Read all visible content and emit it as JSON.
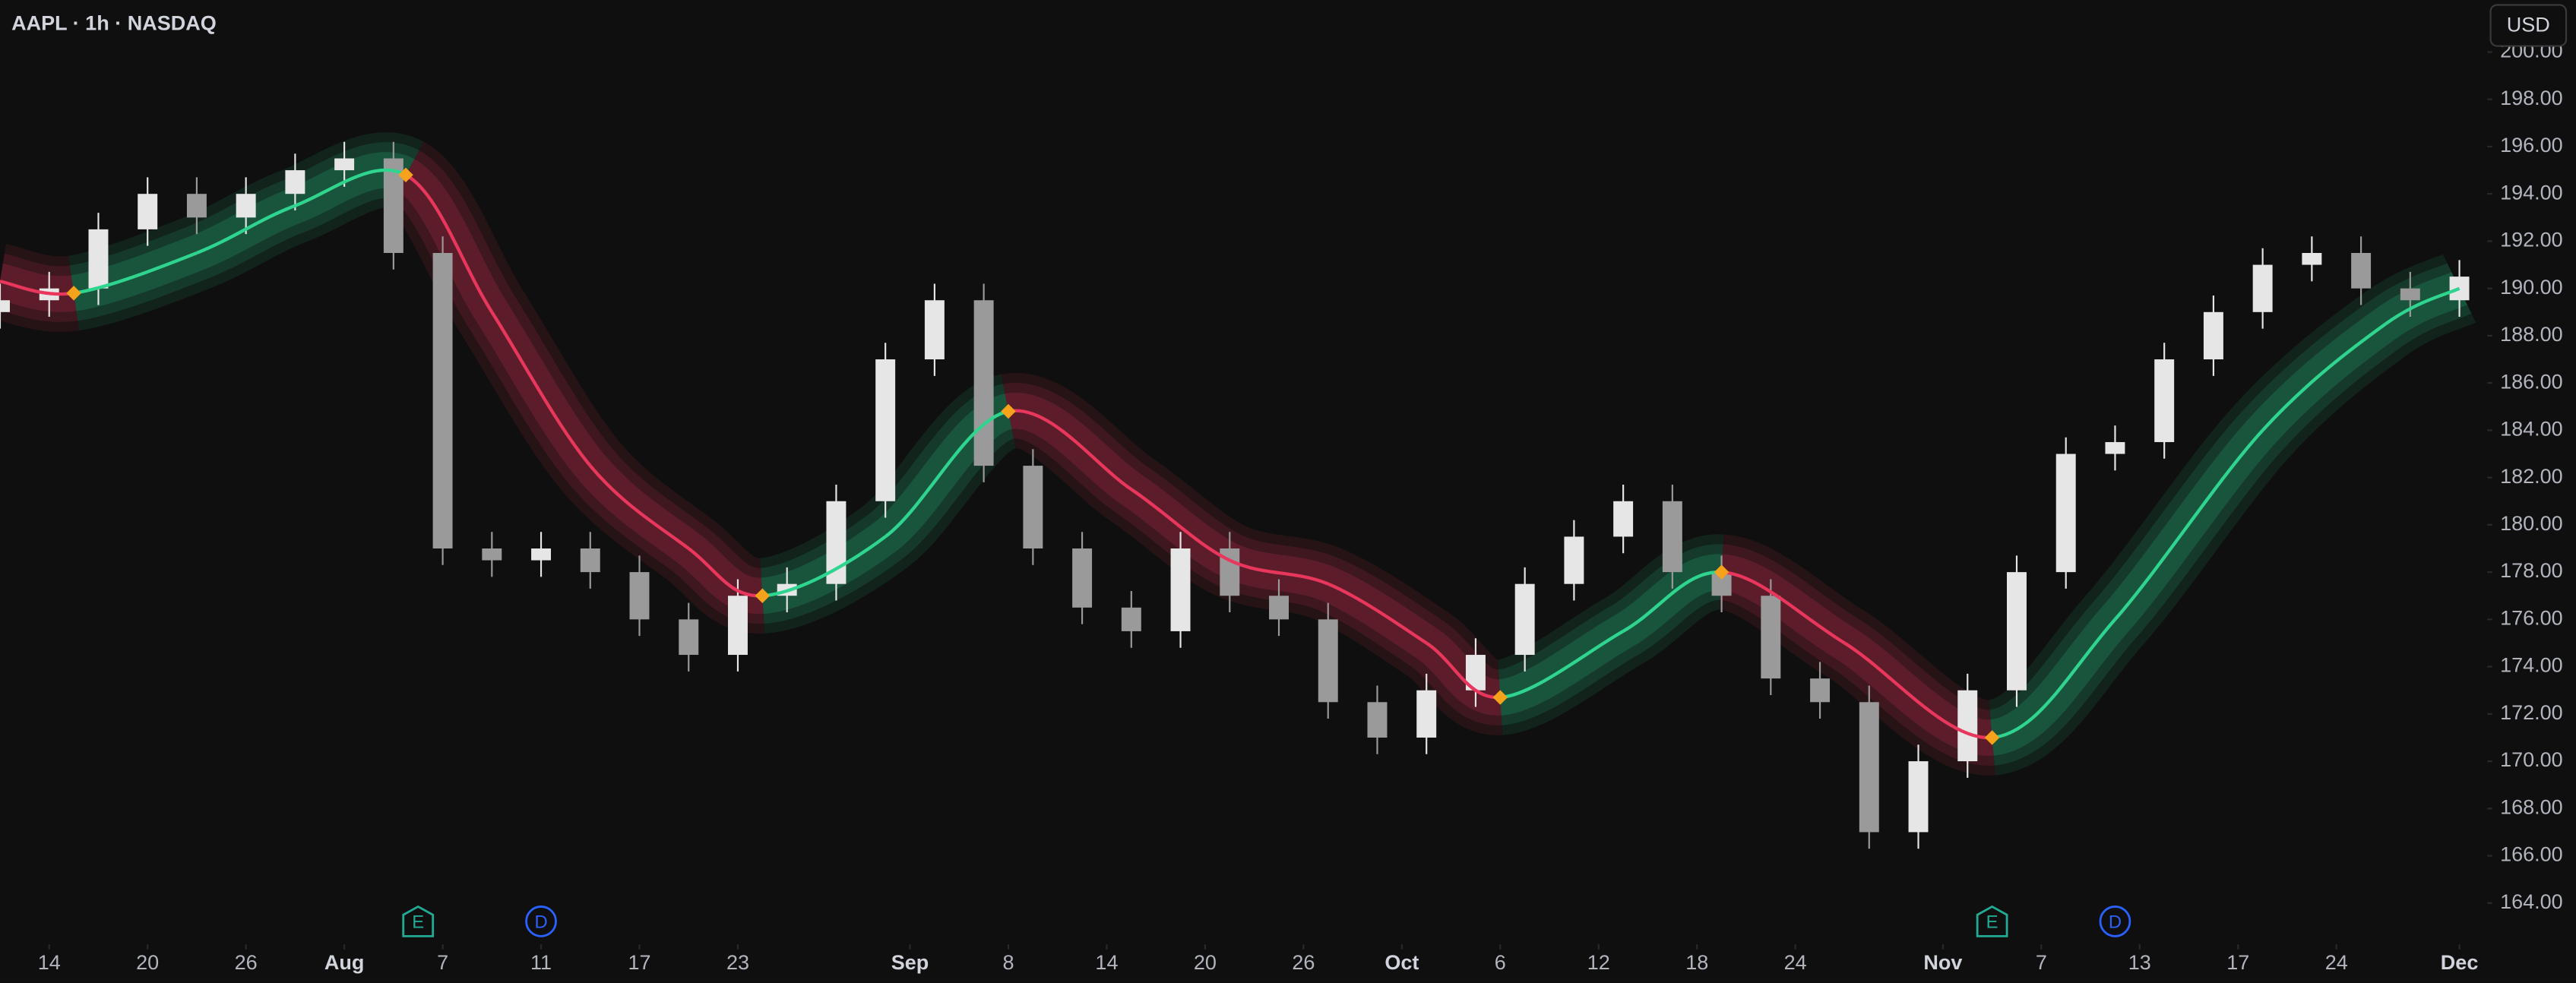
{
  "chart_data": {
    "type": "candlestick",
    "title": "AAPL · 1h · NASDAQ",
    "currency": "USD",
    "x": [
      0,
      2,
      4,
      6,
      8,
      10,
      12,
      14,
      16,
      18,
      20,
      22,
      24,
      26,
      28,
      30,
      32,
      34,
      36,
      38,
      40,
      42,
      44,
      46,
      48,
      50,
      52,
      54,
      56,
      58,
      60,
      62,
      64,
      66,
      68,
      70,
      72,
      74,
      76,
      78,
      80,
      82,
      84,
      86,
      88,
      90,
      92,
      94,
      96,
      98,
      100
    ],
    "open": [
      189,
      189.5,
      190,
      192.5,
      194,
      193,
      194,
      195,
      195.5,
      191.5,
      179,
      178.5,
      179,
      178,
      176,
      174.5,
      177,
      177.5,
      181,
      187,
      189.5,
      182.5,
      179,
      176.5,
      175.5,
      179,
      177,
      176,
      172.5,
      171,
      173,
      174.5,
      177.5,
      179.5,
      181,
      178,
      177,
      173.5,
      172.5,
      167,
      170,
      173,
      178,
      183,
      183.5,
      187,
      189,
      191,
      191.5,
      190,
      189.5
    ],
    "high": [
      190.2,
      190.7,
      193.2,
      194.7,
      194.7,
      194.7,
      195.7,
      196.2,
      196.2,
      192.2,
      179.7,
      179.7,
      179.7,
      178.7,
      176.7,
      177.7,
      178.2,
      181.7,
      187.7,
      190.2,
      190.2,
      183.2,
      179.7,
      177.2,
      179.7,
      179.7,
      177.7,
      176.7,
      173.2,
      173.7,
      175.2,
      178.2,
      180.2,
      181.7,
      181.7,
      178.7,
      177.7,
      174.2,
      173.2,
      170.7,
      173.7,
      178.7,
      183.7,
      184.2,
      187.7,
      189.7,
      191.7,
      192.2,
      192.2,
      190.7,
      191.2
    ],
    "low": [
      188.3,
      188.8,
      189.3,
      191.8,
      192.3,
      192.3,
      193.3,
      194.3,
      190.8,
      178.3,
      177.8,
      177.8,
      177.3,
      175.3,
      173.8,
      173.8,
      176.3,
      176.8,
      180.3,
      186.3,
      181.8,
      178.3,
      175.8,
      174.8,
      174.8,
      176.3,
      175.3,
      171.8,
      170.3,
      170.3,
      172.3,
      173.8,
      176.8,
      178.8,
      177.3,
      176.3,
      172.8,
      171.8,
      166.3,
      166.3,
      169.3,
      172.3,
      177.3,
      182.3,
      182.8,
      186.3,
      188.3,
      190.3,
      189.3,
      188.8,
      188.8
    ],
    "close": [
      189.5,
      190,
      192.5,
      194,
      193,
      194,
      195,
      195.5,
      191.5,
      179,
      178.5,
      179,
      178,
      176,
      174.5,
      177,
      177.5,
      181,
      187,
      189.5,
      182.5,
      179,
      176.5,
      175.5,
      179,
      177,
      176,
      172.5,
      171,
      173,
      174.5,
      177.5,
      179.5,
      181,
      178,
      177,
      173.5,
      172.5,
      167,
      170,
      173,
      178,
      183,
      183.5,
      187,
      189,
      191,
      191.5,
      190,
      189.5,
      190.5
    ],
    "up_color": "#e6e6e6",
    "down_color": "#9a9a9a",
    "basis_x": [
      0,
      3,
      8,
      12,
      16.5,
      20,
      24,
      28,
      31,
      36,
      41,
      46,
      50,
      54,
      58,
      61,
      66,
      70,
      75,
      81,
      86,
      92,
      97,
      100
    ],
    "basis": [
      190.3,
      189.8,
      191.5,
      193.5,
      194.8,
      189,
      182.5,
      179,
      177,
      179.5,
      184.8,
      181.5,
      178.5,
      177.5,
      175,
      172.7,
      175.5,
      178,
      175,
      171,
      176,
      184,
      188.5,
      190
    ],
    "rise_color": "#2fd58f",
    "fall_color": "#e8365d",
    "pivot_color": "#f7a21b",
    "xlim": [
      0,
      101
    ],
    "ylim": [
      162.6,
      202.2
    ],
    "xticks": [
      {
        "value": 2,
        "label": "14"
      },
      {
        "value": 6,
        "label": "20"
      },
      {
        "value": 10,
        "label": "26"
      },
      {
        "value": 14,
        "label": "Aug"
      },
      {
        "value": 18,
        "label": "7"
      },
      {
        "value": 22,
        "label": "11"
      },
      {
        "value": 26,
        "label": "17"
      },
      {
        "value": 30,
        "label": "23"
      },
      {
        "value": 37,
        "label": "Sep"
      },
      {
        "value": 41,
        "label": "8"
      },
      {
        "value": 45,
        "label": "14"
      },
      {
        "value": 49,
        "label": "20"
      },
      {
        "value": 53,
        "label": "26"
      },
      {
        "value": 57,
        "label": "Oct"
      },
      {
        "value": 61,
        "label": "6"
      },
      {
        "value": 65,
        "label": "12"
      },
      {
        "value": 69,
        "label": "18"
      },
      {
        "value": 73,
        "label": "24"
      },
      {
        "value": 79,
        "label": "Nov"
      },
      {
        "value": 83,
        "label": "7"
      },
      {
        "value": 87,
        "label": "13"
      },
      {
        "value": 91,
        "label": "17"
      },
      {
        "value": 95,
        "label": "24"
      },
      {
        "value": 100,
        "label": "Dec"
      }
    ],
    "yticks": [
      {
        "value": 164,
        "label": "164.00"
      },
      {
        "value": 166,
        "label": "166.00"
      },
      {
        "value": 168,
        "label": "168.00"
      },
      {
        "value": 170,
        "label": "170.00"
      },
      {
        "value": 172,
        "label": "172.00"
      },
      {
        "value": 174,
        "label": "174.00"
      },
      {
        "value": 176,
        "label": "176.00"
      },
      {
        "value": 178,
        "label": "178.00"
      },
      {
        "value": 180,
        "label": "180.00"
      },
      {
        "value": 182,
        "label": "182.00"
      },
      {
        "value": 184,
        "label": "184.00"
      },
      {
        "value": 186,
        "label": "186.00"
      },
      {
        "value": 188,
        "label": "188.00"
      },
      {
        "value": 190,
        "label": "190.00"
      },
      {
        "value": 192,
        "label": "192.00"
      },
      {
        "value": 194,
        "label": "194.00"
      },
      {
        "value": 196,
        "label": "196.00"
      },
      {
        "value": 198,
        "label": "198.00"
      },
      {
        "value": 200,
        "label": "200.00"
      }
    ],
    "events": [
      {
        "label": "E",
        "x": 17,
        "color": "#22ab94"
      },
      {
        "label": "D",
        "x": 22,
        "color": "#2962ff"
      },
      {
        "label": "E",
        "x": 81,
        "color": "#22ab94"
      },
      {
        "label": "D",
        "x": 86,
        "color": "#2962ff"
      }
    ]
  }
}
